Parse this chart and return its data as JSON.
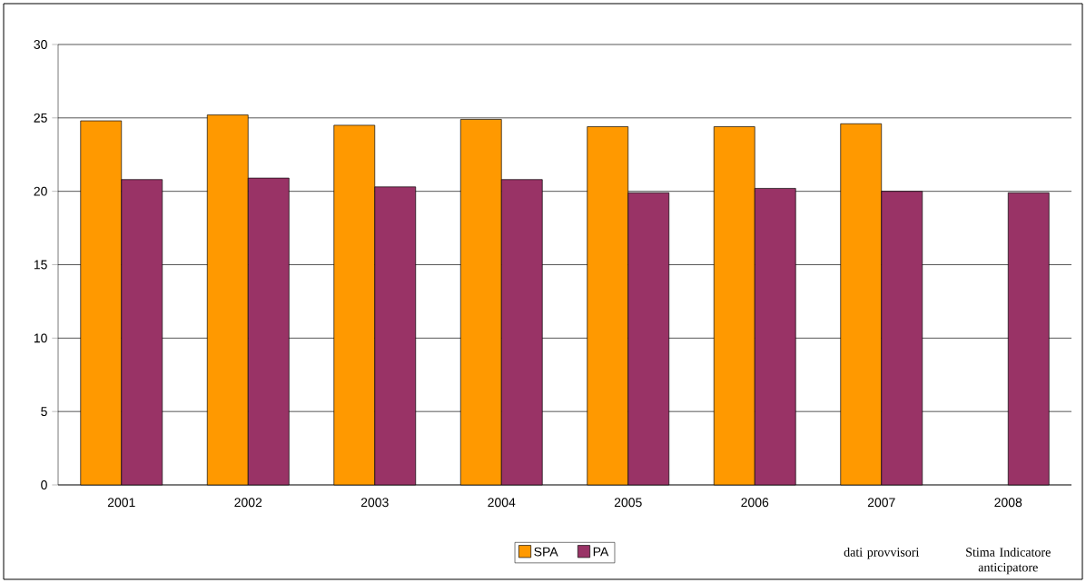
{
  "chart_data": {
    "type": "bar",
    "categories": [
      "2001",
      "2002",
      "2003",
      "2004",
      "2005",
      "2006",
      "2007",
      "2008"
    ],
    "series": [
      {
        "name": "SPA",
        "color": "#ff9900",
        "values": [
          24.8,
          25.2,
          24.5,
          24.9,
          24.4,
          24.4,
          24.6,
          null
        ]
      },
      {
        "name": "PA",
        "color": "#993366",
        "values": [
          20.8,
          20.9,
          20.3,
          20.8,
          19.9,
          20.2,
          20.0,
          19.9
        ]
      }
    ],
    "ylim": [
      0,
      30
    ],
    "yticks": [
      0,
      5,
      10,
      15,
      20,
      25,
      30
    ],
    "grid": "y",
    "legend": "bottom",
    "annotations": [
      "dati provvisori",
      "Stima Indicatore anticipatore"
    ]
  }
}
